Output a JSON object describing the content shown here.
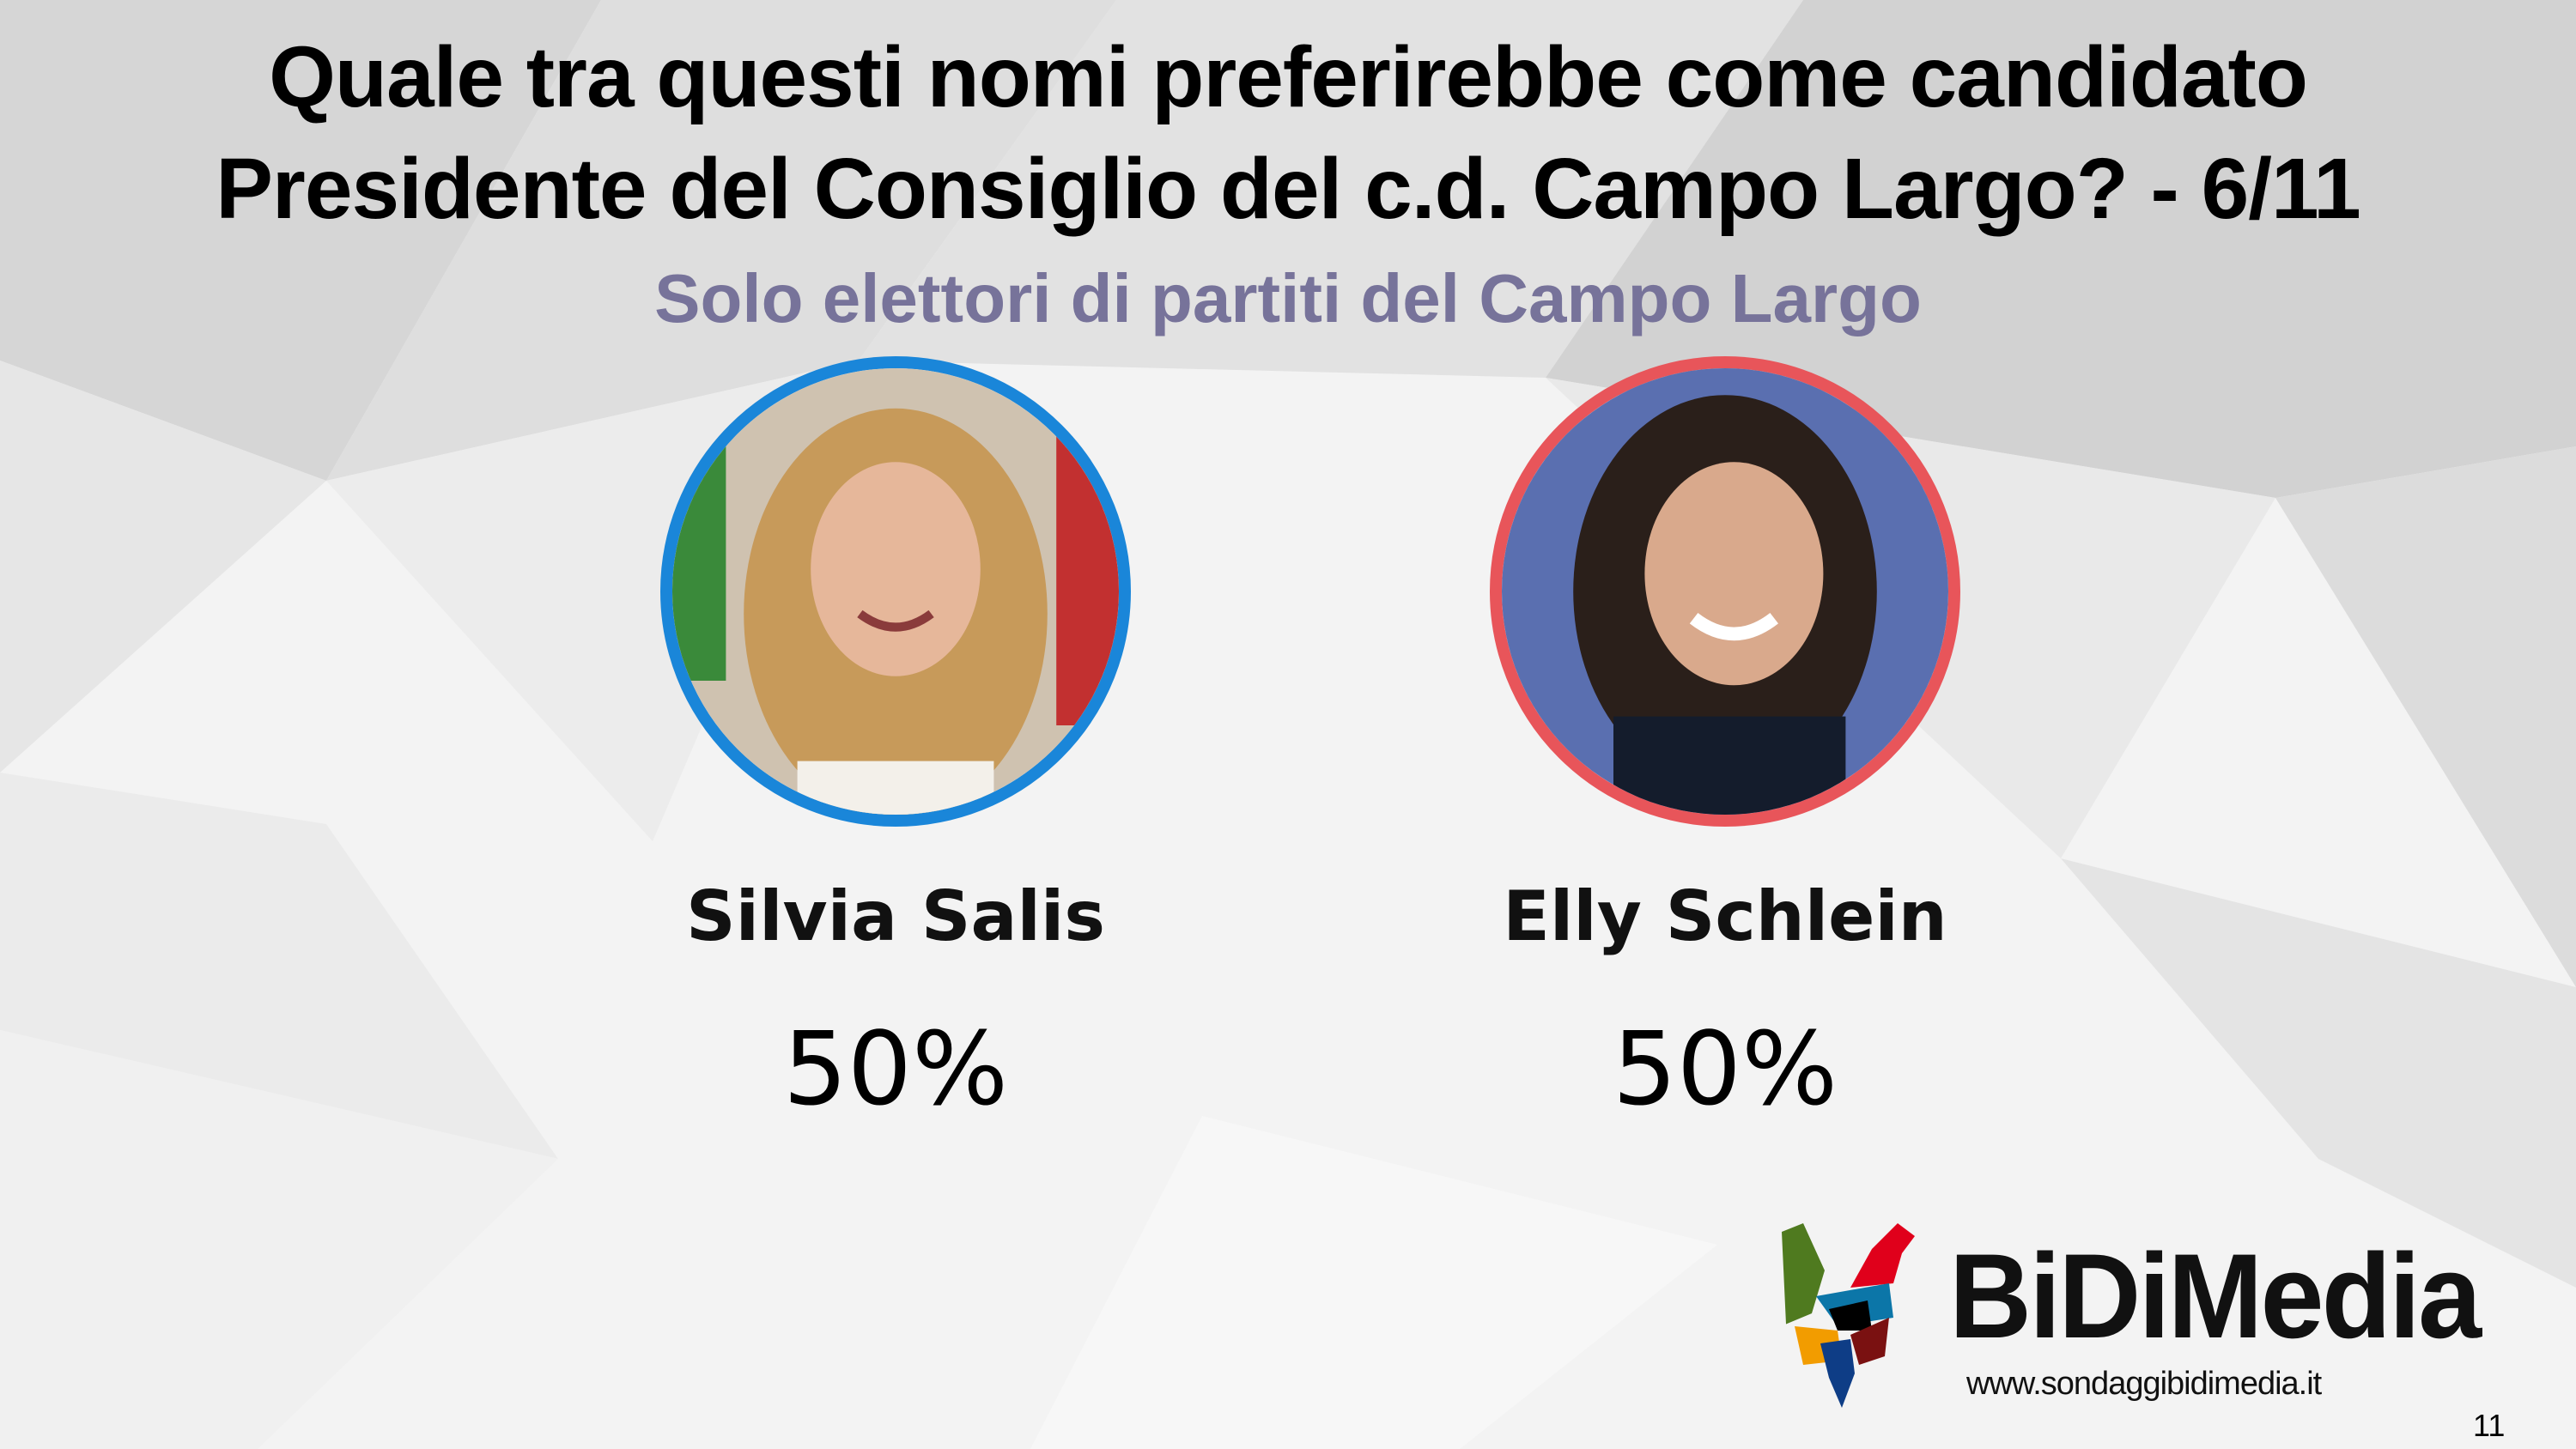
{
  "title": {
    "line1": "Quale tra questi nomi preferirebbe come candidato",
    "line2": "Presidente del Consiglio del c.d. Campo Largo? - 6/11"
  },
  "subtitle": "Solo elettori di partiti del Campo Largo",
  "candidates": [
    {
      "name": "Silvia Salis",
      "percent": "50%",
      "ring_color": "#1a86d9"
    },
    {
      "name": "Elly Schlein",
      "percent": "50%",
      "ring_color": "#e8555a"
    }
  ],
  "logo": {
    "brand": "BiDiMedia",
    "url": "www.sondaggibidimedia.it"
  },
  "page_number": "11",
  "colors": {
    "subtitle": "#77739a",
    "background": "#f2f2f2"
  }
}
